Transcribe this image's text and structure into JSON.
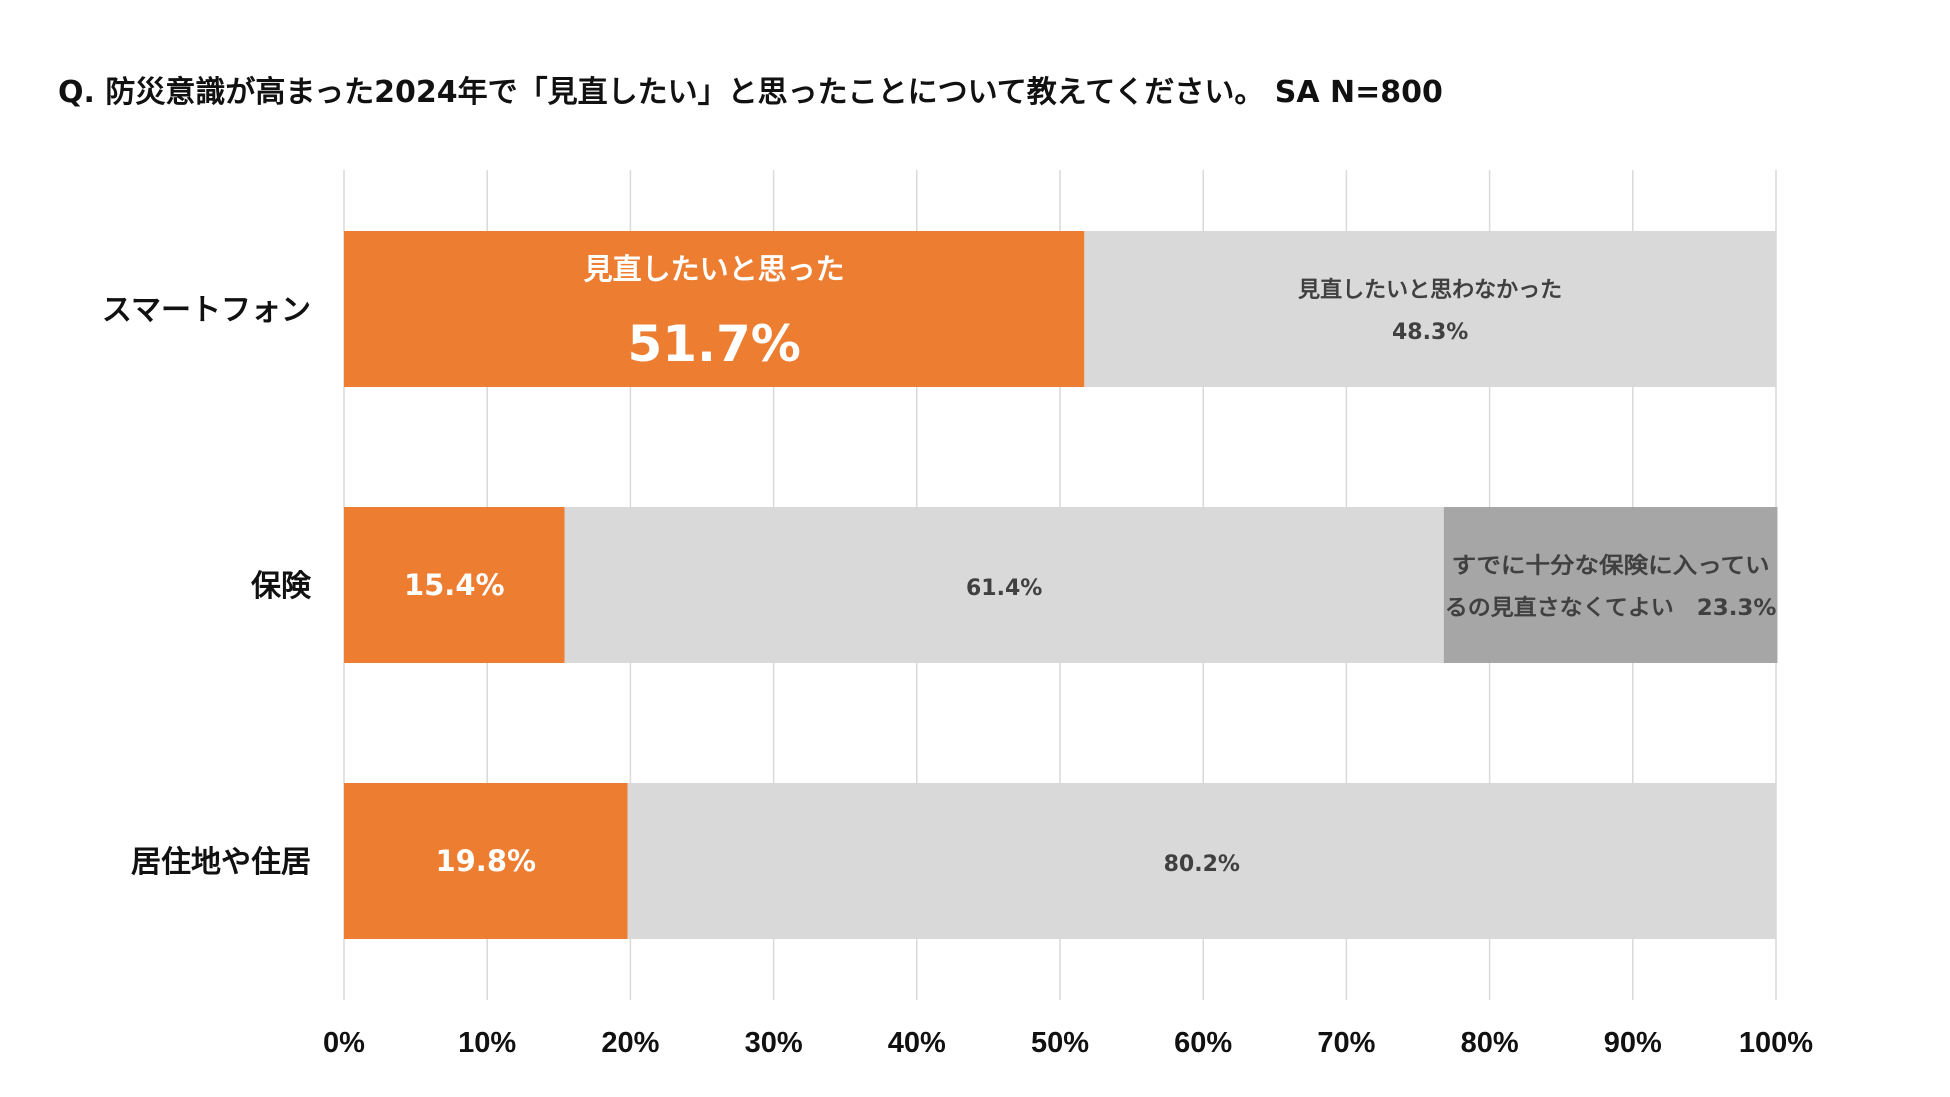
{
  "chart_data": {
    "type": "bar",
    "orientation": "horizontal",
    "stacked": true,
    "title": "Q. 防災意識が高まった2024年で「見直したい」と思ったことについて教えてください。 SA N=800",
    "categories": [
      "スマートフォン",
      "保険",
      "居住地や住居"
    ],
    "series": [
      {
        "name": "見直したいと思った",
        "color": "#ED7D31",
        "label_color": "#FFFFFF",
        "values": [
          51.7,
          15.4,
          19.8
        ],
        "labels": [
          [
            "見直したいと思った",
            "51.7%"
          ],
          [
            "15.4%"
          ],
          [
            "19.8%"
          ]
        ]
      },
      {
        "name": "見直したいと思わなかった",
        "color": "#D9D9D9",
        "label_color": "#404040",
        "values": [
          48.3,
          61.4,
          80.2
        ],
        "labels": [
          [
            "見直したいと思わなかった",
            "48.3%"
          ],
          [
            "61.4%"
          ],
          [
            "80.2%"
          ]
        ]
      },
      {
        "name": "すでに十分な保険に入っているの見直さなくてよい",
        "color": "#A6A6A6",
        "label_color": "#404040",
        "values": [
          0,
          23.3,
          0
        ],
        "labels": [
          [],
          [
            "すでに十分な保険に入ってい",
            "るの見直さなくてよい　23.3%"
          ],
          []
        ]
      }
    ],
    "xlim": [
      0,
      100
    ],
    "xticks": [
      "0%",
      "10%",
      "20%",
      "30%",
      "40%",
      "50%",
      "60%",
      "70%",
      "80%",
      "90%",
      "100%"
    ],
    "grid": true,
    "xlabel": "",
    "ylabel": "",
    "legend": "none"
  }
}
